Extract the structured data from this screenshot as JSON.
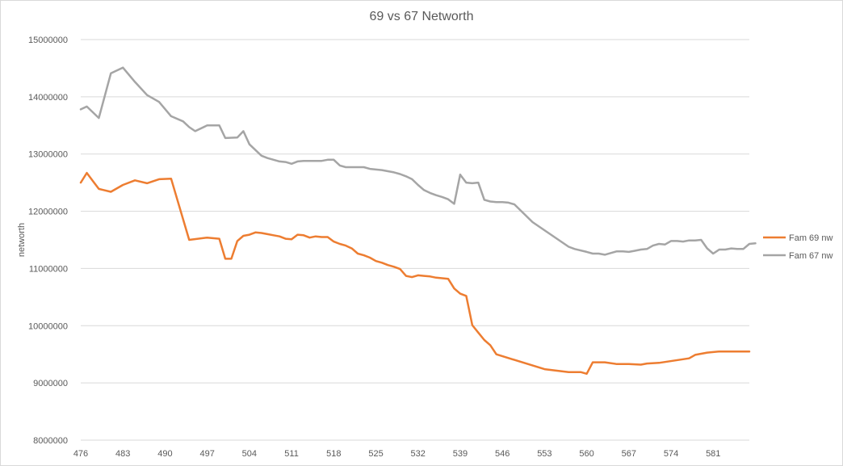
{
  "chart_data": {
    "type": "line",
    "title": "69 vs 67 Networth",
    "xlabel": "",
    "ylabel": "networth",
    "xlim": [
      476,
      587
    ],
    "ylim": [
      8000000,
      15000000
    ],
    "yticks": [
      "8000000",
      "9000000",
      "10000000",
      "11000000",
      "12000000",
      "13000000",
      "14000000",
      "15000000"
    ],
    "xticks": [
      "476",
      "483",
      "490",
      "497",
      "504",
      "511",
      "518",
      "525",
      "532",
      "539",
      "546",
      "553",
      "560",
      "567",
      "574",
      "581"
    ],
    "grid": true,
    "legend_position": "right",
    "series": [
      {
        "name": "Fam 69 nw",
        "color": "#ED7D31",
        "points": [
          [
            476,
            12500000
          ],
          [
            477,
            12670000
          ],
          [
            478,
            12530000
          ],
          [
            479,
            12390000
          ],
          [
            481,
            12340000
          ],
          [
            483,
            12460000
          ],
          [
            485,
            12540000
          ],
          [
            487,
            12490000
          ],
          [
            489,
            12560000
          ],
          [
            491,
            12570000
          ],
          [
            494,
            11500000
          ],
          [
            497,
            11540000
          ],
          [
            499,
            11520000
          ],
          [
            500,
            11170000
          ],
          [
            501,
            11170000
          ],
          [
            502,
            11480000
          ],
          [
            503,
            11570000
          ],
          [
            504,
            11590000
          ],
          [
            505,
            11630000
          ],
          [
            506,
            11620000
          ],
          [
            507,
            11600000
          ],
          [
            508,
            11580000
          ],
          [
            509,
            11560000
          ],
          [
            510,
            11520000
          ],
          [
            511,
            11510000
          ],
          [
            512,
            11590000
          ],
          [
            513,
            11580000
          ],
          [
            514,
            11540000
          ],
          [
            515,
            11560000
          ],
          [
            516,
            11550000
          ],
          [
            517,
            11550000
          ],
          [
            518,
            11470000
          ],
          [
            519,
            11430000
          ],
          [
            520,
            11400000
          ],
          [
            521,
            11350000
          ],
          [
            522,
            11260000
          ],
          [
            523,
            11230000
          ],
          [
            524,
            11190000
          ],
          [
            525,
            11130000
          ],
          [
            526,
            11100000
          ],
          [
            527,
            11060000
          ],
          [
            528,
            11030000
          ],
          [
            529,
            10990000
          ],
          [
            530,
            10870000
          ],
          [
            531,
            10850000
          ],
          [
            532,
            10880000
          ],
          [
            533,
            10870000
          ],
          [
            534,
            10860000
          ],
          [
            535,
            10840000
          ],
          [
            536,
            10830000
          ],
          [
            537,
            10820000
          ],
          [
            538,
            10650000
          ],
          [
            539,
            10560000
          ],
          [
            540,
            10520000
          ],
          [
            541,
            10010000
          ],
          [
            542,
            9880000
          ],
          [
            543,
            9750000
          ],
          [
            544,
            9660000
          ],
          [
            545,
            9500000
          ],
          [
            553,
            9240000
          ],
          [
            557,
            9190000
          ],
          [
            559,
            9190000
          ],
          [
            560,
            9160000
          ],
          [
            561,
            9360000
          ],
          [
            563,
            9360000
          ],
          [
            565,
            9330000
          ],
          [
            567,
            9330000
          ],
          [
            569,
            9320000
          ],
          [
            570,
            9340000
          ],
          [
            572,
            9350000
          ],
          [
            577,
            9430000
          ],
          [
            578,
            9490000
          ],
          [
            580,
            9530000
          ],
          [
            582,
            9550000
          ],
          [
            587,
            9550000
          ]
        ]
      },
      {
        "name": "Fam 67 nw",
        "color": "#A5A5A5",
        "points": [
          [
            476,
            13780000
          ],
          [
            477,
            13830000
          ],
          [
            479,
            13630000
          ],
          [
            481,
            14410000
          ],
          [
            483,
            14510000
          ],
          [
            485,
            14260000
          ],
          [
            487,
            14030000
          ],
          [
            489,
            13910000
          ],
          [
            491,
            13660000
          ],
          [
            493,
            13570000
          ],
          [
            494,
            13470000
          ],
          [
            495,
            13400000
          ],
          [
            497,
            13500000
          ],
          [
            499,
            13500000
          ],
          [
            500,
            13280000
          ],
          [
            502,
            13290000
          ],
          [
            503,
            13400000
          ],
          [
            504,
            13170000
          ],
          [
            506,
            12970000
          ],
          [
            507,
            12930000
          ],
          [
            508,
            12900000
          ],
          [
            509,
            12870000
          ],
          [
            510,
            12860000
          ],
          [
            511,
            12830000
          ],
          [
            512,
            12870000
          ],
          [
            513,
            12880000
          ],
          [
            516,
            12880000
          ],
          [
            517,
            12900000
          ],
          [
            518,
            12900000
          ],
          [
            519,
            12800000
          ],
          [
            520,
            12770000
          ],
          [
            523,
            12770000
          ],
          [
            524,
            12740000
          ],
          [
            526,
            12720000
          ],
          [
            527,
            12700000
          ],
          [
            528,
            12680000
          ],
          [
            529,
            12650000
          ],
          [
            530,
            12610000
          ],
          [
            531,
            12560000
          ],
          [
            532,
            12460000
          ],
          [
            533,
            12370000
          ],
          [
            534,
            12320000
          ],
          [
            535,
            12280000
          ],
          [
            536,
            12250000
          ],
          [
            537,
            12210000
          ],
          [
            538,
            12130000
          ],
          [
            539,
            12640000
          ],
          [
            540,
            12500000
          ],
          [
            541,
            12490000
          ],
          [
            542,
            12500000
          ],
          [
            543,
            12200000
          ],
          [
            544,
            12170000
          ],
          [
            545,
            12160000
          ],
          [
            546,
            12160000
          ],
          [
            547,
            12150000
          ],
          [
            548,
            12120000
          ],
          [
            551,
            11810000
          ],
          [
            557,
            11380000
          ],
          [
            558,
            11340000
          ],
          [
            560,
            11290000
          ],
          [
            561,
            11260000
          ],
          [
            562,
            11260000
          ],
          [
            563,
            11240000
          ],
          [
            564,
            11270000
          ],
          [
            565,
            11300000
          ],
          [
            566,
            11300000
          ],
          [
            567,
            11290000
          ],
          [
            568,
            11310000
          ],
          [
            569,
            11330000
          ],
          [
            570,
            11340000
          ],
          [
            571,
            11400000
          ],
          [
            572,
            11430000
          ],
          [
            573,
            11420000
          ],
          [
            574,
            11480000
          ],
          [
            575,
            11480000
          ],
          [
            576,
            11470000
          ],
          [
            577,
            11490000
          ],
          [
            578,
            11490000
          ],
          [
            579,
            11500000
          ],
          [
            580,
            11350000
          ],
          [
            581,
            11260000
          ],
          [
            582,
            11330000
          ],
          [
            583,
            11330000
          ],
          [
            584,
            11350000
          ],
          [
            585,
            11340000
          ],
          [
            586,
            11340000
          ],
          [
            587,
            11430000
          ],
          [
            588,
            11440000
          ]
        ]
      }
    ]
  }
}
